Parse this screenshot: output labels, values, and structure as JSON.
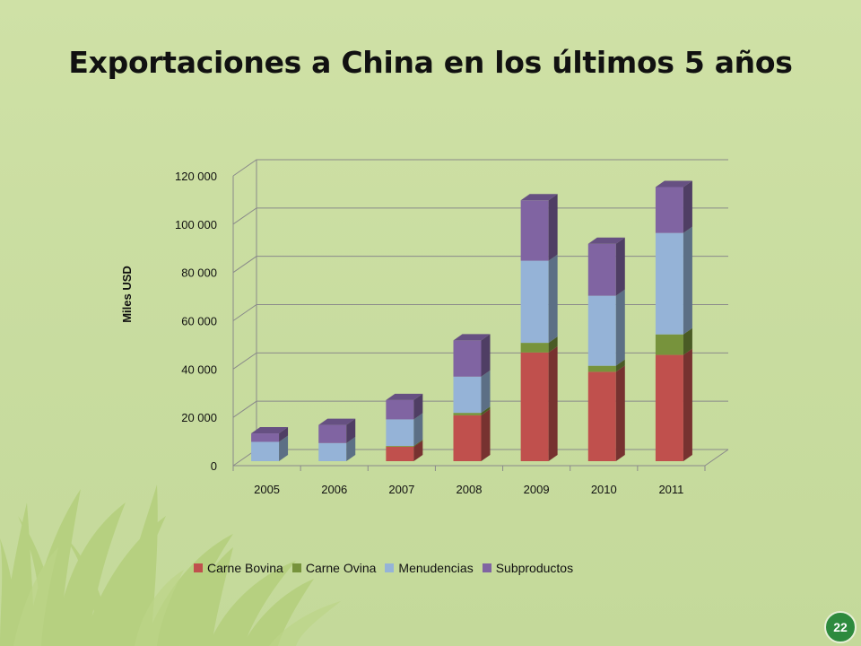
{
  "slide": {
    "title": "Exportaciones a China en los últimos 5 años",
    "page_number": "22",
    "colors": {
      "background": "#cadea0",
      "badge": "#2d8a3e",
      "grass": "#b4cf7c"
    }
  },
  "chart_data": {
    "type": "bar",
    "stacked": true,
    "three_d": true,
    "title": "",
    "xlabel": "",
    "ylabel": "Miles USD",
    "ylim": [
      0,
      120000
    ],
    "yticks": [
      0,
      20000,
      40000,
      60000,
      80000,
      100000,
      120000
    ],
    "ytick_labels": [
      "0",
      "20 000",
      "40 000",
      "60 000",
      "80 000",
      "100 000",
      "120 000"
    ],
    "grid": true,
    "legend_position": "bottom",
    "categories": [
      "2005",
      "2006",
      "2007",
      "2008",
      "2009",
      "2010",
      "2011"
    ],
    "series": [
      {
        "name": "Carne Bovina",
        "color": "#c0504d",
        "values": [
          0,
          0,
          6000,
          19000,
          45000,
          37000,
          44000
        ]
      },
      {
        "name": "Carne Ovina",
        "color": "#77933c",
        "values": [
          0,
          0,
          300,
          1000,
          4000,
          2500,
          8500
        ]
      },
      {
        "name": "Menudencias",
        "color": "#95b3d7",
        "values": [
          8000,
          7500,
          11000,
          15000,
          34000,
          29000,
          42000
        ]
      },
      {
        "name": "Subproductos",
        "color": "#8064a2",
        "values": [
          3500,
          7500,
          8000,
          15000,
          25000,
          21500,
          19000
        ]
      }
    ]
  }
}
